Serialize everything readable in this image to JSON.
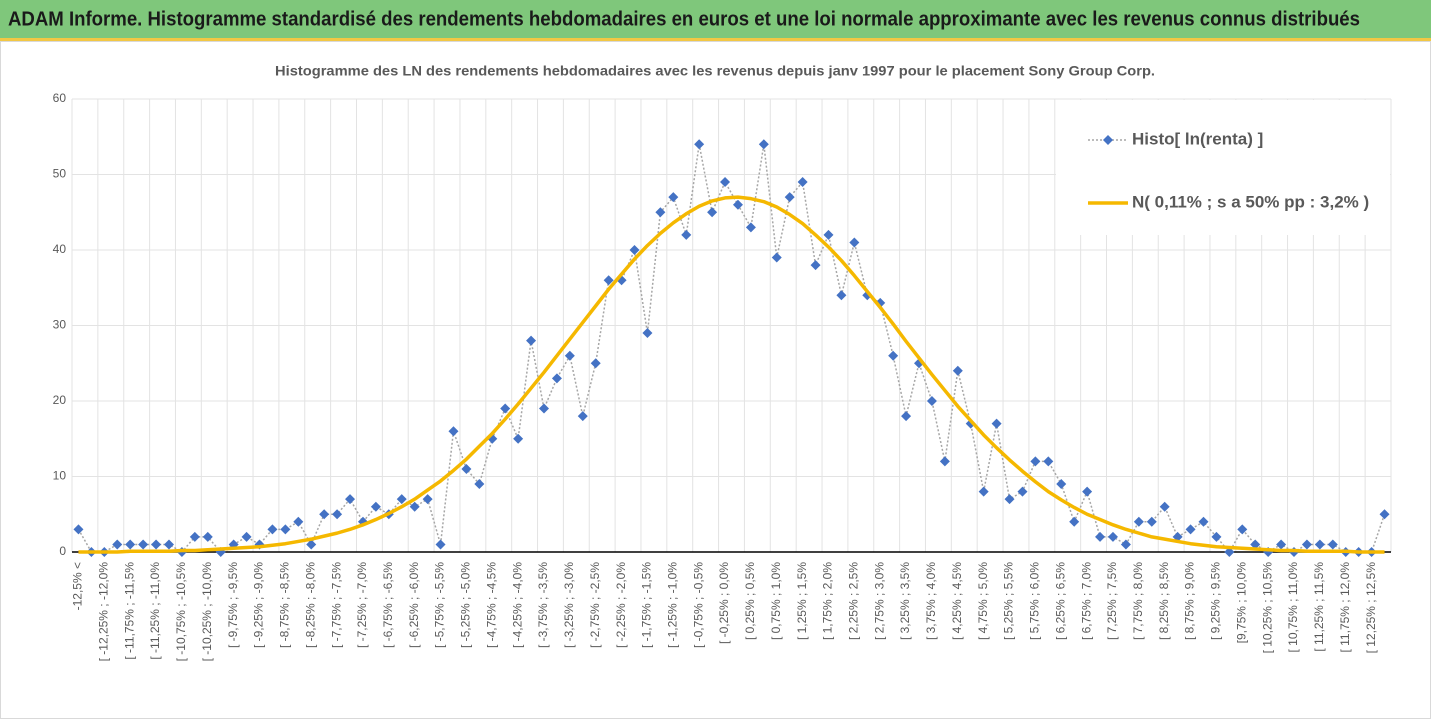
{
  "chart_data": {
    "type": "line",
    "title": "ADAM Informe. Histogramme standardisé des rendements hebdomadaires en euros et une loi normale approximante avec les revenus connus distribués",
    "subtitle": "Histogramme des LN des rendements hebdomadaires avec les revenus depuis janv 1997 pour le placement Sony Group Corp.",
    "categories": [
      "-12,5% <",
      null,
      "[ -12,25% ; -12,0%",
      null,
      "[ -11,75% ; -11,5%",
      null,
      "[ -11,25% ; -11,0%",
      null,
      "[ -10,75% ; -10,5%",
      null,
      "[ -10,25% ; -10,0%",
      null,
      "[ -9,75% ; -9,5%",
      null,
      "[ -9,25% ; -9,0%",
      null,
      "[ -8,75% ; -8,5%",
      null,
      "[ -8,25% ; -8,0%",
      null,
      "[ -7,75% ; -7,5%",
      null,
      "[ -7,25% ; -7,0%",
      null,
      "[ -6,75% ; -6,5%",
      null,
      "[ -6,25% ; -6,0%",
      null,
      "[ -5,75% ; -5,5%",
      null,
      "[ -5,25% ; -5,0%",
      null,
      "[ -4,75% ; -4,5%",
      null,
      "[ -4,25% ; -4,0%",
      null,
      "[ -3,75% ; -3,5%",
      null,
      "[ -3,25% ; -3,0%",
      null,
      "[ -2,75% ; -2,5%",
      null,
      "[ -2,25% ; -2,0%",
      null,
      "[ -1,75% ; -1,5%",
      null,
      "[ -1,25% ; -1,0%",
      null,
      "[ -0,75% ; -0,5%",
      null,
      "[ -0,25% ; 0,0%",
      null,
      "[ 0,25% ; 0,5%",
      null,
      "[ 0,75% ; 1,0%",
      null,
      "[ 1,25% ; 1,5%",
      null,
      "[ 1,75% ; 2,0%",
      null,
      "[ 2,25% ; 2,5%",
      null,
      "[ 2,75% ; 3,0%",
      null,
      "[ 3,25% ; 3,5%",
      null,
      "[ 3,75% ; 4,0%",
      null,
      "[ 4,25% ; 4,5%",
      null,
      "[ 4,75% ; 5,0%",
      null,
      "[ 5,25% ; 5,5%",
      null,
      "[ 5,75% ; 6,0%",
      null,
      "[ 6,25% ; 6,5%",
      null,
      "[ 6,75% ; 7,0%",
      null,
      "[ 7,25% ; 7,5%",
      null,
      "[ 7,75% ; 8,0%",
      null,
      "[ 8,25% ; 8,5%",
      null,
      "[ 8,75% ; 9,0%",
      null,
      "[ 9,25% ; 9,5%",
      null,
      "[9,75% ; 10,0%",
      null,
      "[ 10,25% ; 10,5%",
      null,
      "[ 10,75% ; 11,0%",
      null,
      "[ 11,25% ; 11,5%",
      null,
      "[ 11,75% ; 12,0%",
      null,
      "[ 12,25% ; 12,5%",
      null
    ],
    "series": [
      {
        "name": "Histo[ ln(renta) ]",
        "color": "#4472c4",
        "line_color": "#a6a6a6",
        "values": [
          3,
          0,
          0,
          1,
          1,
          1,
          1,
          1,
          0,
          2,
          2,
          0,
          1,
          2,
          1,
          3,
          3,
          4,
          1,
          5,
          5,
          7,
          4,
          6,
          5,
          7,
          6,
          7,
          1,
          16,
          11,
          9,
          15,
          19,
          15,
          28,
          19,
          23,
          26,
          18,
          25,
          36,
          36,
          40,
          29,
          45,
          47,
          42,
          54,
          45,
          49,
          46,
          43,
          54,
          39,
          47,
          49,
          38,
          42,
          34,
          41,
          34,
          33,
          26,
          18,
          25,
          20,
          12,
          24,
          17,
          8,
          17,
          7,
          8,
          12,
          12,
          9,
          4,
          8,
          2,
          2,
          1,
          4,
          4,
          6,
          2,
          3,
          4,
          2,
          0,
          3,
          1,
          0,
          1,
          0,
          1,
          1,
          1,
          0,
          0,
          0,
          5
        ]
      },
      {
        "name": "N( 0,11% ; s a 50% pp : 3,2% )",
        "color": "#f5b800",
        "values": [
          0.0,
          0.0,
          0.0,
          0.0,
          0.1,
          0.1,
          0.1,
          0.1,
          0.2,
          0.2,
          0.3,
          0.4,
          0.5,
          0.6,
          0.7,
          0.9,
          1.1,
          1.4,
          1.7,
          2.1,
          2.5,
          3.0,
          3.6,
          4.3,
          5.1,
          6.0,
          7.0,
          8.2,
          9.4,
          10.8,
          12.3,
          14.0,
          15.7,
          17.6,
          19.6,
          21.7,
          23.8,
          26.0,
          28.2,
          30.4,
          32.6,
          34.8,
          36.8,
          38.8,
          40.6,
          42.2,
          43.6,
          44.8,
          45.8,
          46.5,
          46.9,
          47.0,
          46.8,
          46.4,
          45.7,
          44.7,
          43.5,
          42.0,
          40.4,
          38.6,
          36.6,
          34.5,
          32.4,
          30.2,
          27.9,
          25.7,
          23.5,
          21.4,
          19.3,
          17.4,
          15.5,
          13.8,
          12.2,
          10.7,
          9.3,
          8.0,
          6.9,
          5.9,
          5.0,
          4.3,
          3.6,
          3.0,
          2.5,
          2.0,
          1.7,
          1.4,
          1.1,
          0.9,
          0.7,
          0.6,
          0.5,
          0.4,
          0.3,
          0.2,
          0.2,
          0.1,
          0.1,
          0.1,
          0.1,
          0.0,
          0.0,
          0.0
        ]
      }
    ],
    "ylim": [
      0,
      60
    ],
    "yticks": [
      0,
      10,
      20,
      30,
      40,
      50,
      60
    ],
    "grid": true,
    "legend": "top-right"
  }
}
